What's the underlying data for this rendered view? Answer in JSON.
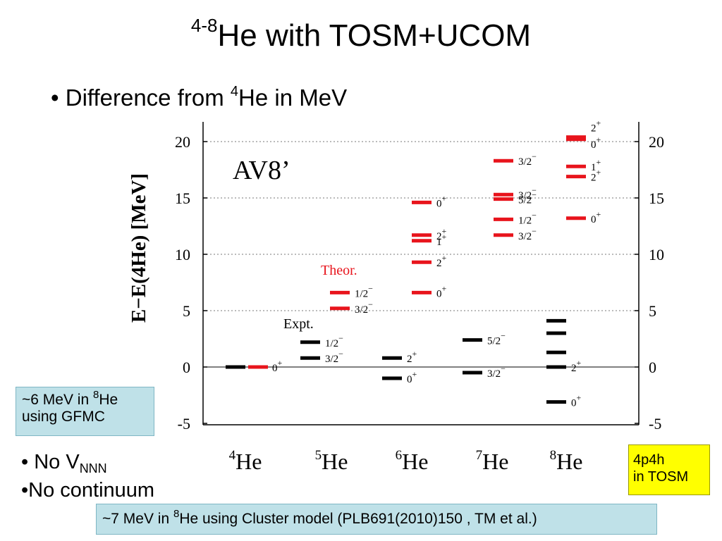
{
  "title": {
    "sup": "4-8",
    "text": "He  with TOSM+UCOM"
  },
  "bullet_top": {
    "marker": "•",
    "text": "Difference from ",
    "sup": "4",
    "text2": "He in MeV"
  },
  "box_gfmc": {
    "line1_a": "~6 MeV in ",
    "line1_sup": "8",
    "line1_b": "He",
    "line2": "using GFMC"
  },
  "bullets_low": {
    "b1_marker": "•",
    "b1_text": " No V",
    "b1_sub": "NNN",
    "b2_marker": "•",
    "b2_text": "No continuum"
  },
  "box_cluster": {
    "a": "~7 MeV in ",
    "sup": "8",
    "b": "He using Cluster model (PLB691(2010)150 , TM et al.)"
  },
  "box_tosm": {
    "line1": "4p4h",
    "line2": "in TOSM"
  },
  "colors": {
    "expt": "#000000",
    "theor": "#e8141c",
    "grid": "#777777",
    "gfmc_box": "#bfe1e8",
    "tosm_box": "#ffff00"
  },
  "chart_data": {
    "type": "level-scheme",
    "ylabel": "E−E(4He)  [MeV]",
    "ylim": [
      -5,
      21.5
    ],
    "yticks": [
      "20",
      "15",
      "10",
      "5",
      "0",
      "-5"
    ],
    "grid": "dotted horizontal at 5, 10, 15, 20",
    "annotation": "AV8’",
    "label_theor": "Theor.",
    "label_expt": "Expt.",
    "nuclei": [
      {
        "mass": "4",
        "symbol": "He"
      },
      {
        "mass": "5",
        "symbol": "He"
      },
      {
        "mass": "6",
        "symbol": "He"
      },
      {
        "mass": "7",
        "symbol": "He"
      },
      {
        "mass": "8",
        "symbol": "He"
      }
    ],
    "levels": [
      {
        "nucleus": 0,
        "series": "expt",
        "energy": 0.0
      },
      {
        "nucleus": 0,
        "series": "theor",
        "energy": 0.0,
        "label": "0+"
      },
      {
        "nucleus": 1,
        "series": "expt",
        "energy": 2.2,
        "label": "1/2−"
      },
      {
        "nucleus": 1,
        "series": "expt",
        "energy": 0.8,
        "label": "3/2−"
      },
      {
        "nucleus": 1,
        "series": "theor",
        "energy": 6.6,
        "label": "1/2−"
      },
      {
        "nucleus": 1,
        "series": "theor",
        "energy": 5.2,
        "label": "3/2−"
      },
      {
        "nucleus": 2,
        "series": "expt",
        "energy": 0.8,
        "label": "2+"
      },
      {
        "nucleus": 2,
        "series": "expt",
        "energy": -1.0,
        "label": "0+"
      },
      {
        "nucleus": 2,
        "series": "theor",
        "energy": 14.6,
        "label": "0+"
      },
      {
        "nucleus": 2,
        "series": "theor",
        "energy": 11.7,
        "label": "2+"
      },
      {
        "nucleus": 2,
        "series": "theor",
        "energy": 11.2,
        "label": "1+"
      },
      {
        "nucleus": 2,
        "series": "theor",
        "energy": 9.3,
        "label": "2+"
      },
      {
        "nucleus": 2,
        "series": "theor",
        "energy": 6.6,
        "label": "0+"
      },
      {
        "nucleus": 3,
        "series": "expt",
        "energy": 2.4,
        "label": "5/2−"
      },
      {
        "nucleus": 3,
        "series": "expt",
        "energy": -0.5,
        "label": "3/2−"
      },
      {
        "nucleus": 3,
        "series": "theor",
        "energy": 18.3,
        "label": "3/2−"
      },
      {
        "nucleus": 3,
        "series": "theor",
        "energy": 15.3,
        "label": "3/2−"
      },
      {
        "nucleus": 3,
        "series": "theor",
        "energy": 14.9,
        "label": "5/2−"
      },
      {
        "nucleus": 3,
        "series": "theor",
        "energy": 13.1,
        "label": "1/2−"
      },
      {
        "nucleus": 3,
        "series": "theor",
        "energy": 11.7,
        "label": "3/2−"
      },
      {
        "nucleus": 4,
        "series": "expt",
        "energy": 4.1
      },
      {
        "nucleus": 4,
        "series": "expt",
        "energy": 3.0
      },
      {
        "nucleus": 4,
        "series": "expt",
        "energy": 1.3
      },
      {
        "nucleus": 4,
        "series": "expt",
        "energy": 0.0,
        "label": "2+"
      },
      {
        "nucleus": 4,
        "series": "expt",
        "energy": -3.1,
        "label": "0+"
      },
      {
        "nucleus": 4,
        "series": "theor",
        "energy": 20.4,
        "label": "2+"
      },
      {
        "nucleus": 4,
        "series": "theor",
        "energy": 20.2,
        "label": "0+"
      },
      {
        "nucleus": 4,
        "series": "theor",
        "energy": 17.8,
        "label": "1+"
      },
      {
        "nucleus": 4,
        "series": "theor",
        "energy": 16.9,
        "label": "2+"
      },
      {
        "nucleus": 4,
        "series": "theor",
        "energy": 13.2,
        "label": "0+"
      }
    ]
  }
}
